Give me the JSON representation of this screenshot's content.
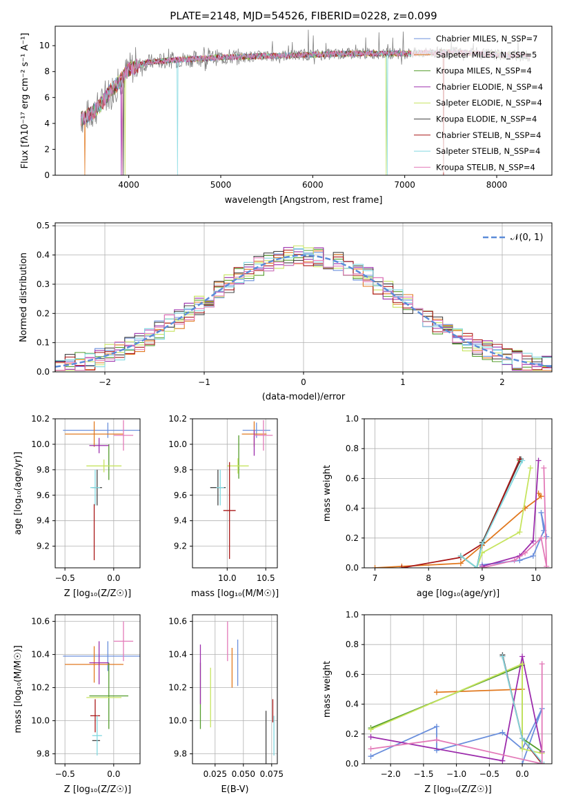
{
  "colors": {
    "c0": "#6a8fdc",
    "c1": "#e1781e",
    "c2": "#539c2b",
    "c3": "#9c2cac",
    "c4": "#c6e45e",
    "c5": "#444444",
    "c6": "#a81616",
    "c7": "#80d8e0",
    "c8": "#e37ab8"
  },
  "chart_data": [
    {
      "id": "spectrum",
      "type": "line",
      "title": "PLATE=2148, MJD=54526, FIBERID=0228, z=0.099",
      "xlabel": "wavelength [Angstrom, rest frame]",
      "ylabel": "Flux [fλ10⁻¹⁷ erg cm⁻² s⁻¹ A⁻¹]",
      "xlim": [
        3200,
        8600
      ],
      "ylim": [
        0,
        11.5
      ],
      "xticks": [
        "4000",
        "5000",
        "6000",
        "7000",
        "8000"
      ],
      "yticks": [
        "0",
        "2",
        "4",
        "6",
        "8",
        "10"
      ],
      "legend": [
        "Chabrier MILES, N_SSP=7",
        "Salpeter MILES, N_SSP=5",
        "Kroupa MILES, N_SSP=4",
        "Chabrier ELODIE, N_SSP=4",
        "Salpeter ELODIE, N_SSP=4",
        "Kroupa ELODIE, N_SSP=4",
        "Chabrier STELIB, N_SSP=4",
        "Salpeter STELIB, N_SSP=4",
        "Kroupa STELIB, N_SSP=4"
      ],
      "legend_placement": "right",
      "continuum": [
        [
          3500,
          4.4
        ],
        [
          3600,
          4.8
        ],
        [
          3700,
          5.5
        ],
        [
          3800,
          6.5
        ],
        [
          3900,
          7.2
        ],
        [
          4000,
          8.2
        ],
        [
          4200,
          8.7
        ],
        [
          4500,
          8.9
        ],
        [
          5000,
          9.1
        ],
        [
          5500,
          9.2
        ],
        [
          6000,
          9.3
        ],
        [
          6500,
          9.4
        ],
        [
          7000,
          9.4
        ],
        [
          7500,
          9.5
        ],
        [
          8000,
          9.3
        ],
        [
          8350,
          9.2
        ]
      ]
    },
    {
      "id": "residuals",
      "type": "histogram",
      "xlabel": "(data-model)/error",
      "ylabel": "Normed distribution",
      "xlim": [
        -2.5,
        2.5
      ],
      "ylim": [
        0,
        0.51
      ],
      "xticks": [
        "−2",
        "−1",
        "0",
        "1",
        "2"
      ],
      "yticks": [
        "0.0",
        "0.1",
        "0.2",
        "0.3",
        "0.4",
        "0.5"
      ],
      "bin_width": 0.1,
      "reference": "N(0,1)",
      "legend_label": "𝒩(0, 1)",
      "legend_placement": "top-right"
    },
    {
      "id": "age-vs-Z",
      "type": "errorbar",
      "xlabel": "Z [log₁₀(Z/Z☉)]",
      "ylabel": "age  [log₁₀(age/yr)]",
      "xlim": [
        -0.6,
        0.27
      ],
      "ylim": [
        9.03,
        10.2
      ],
      "xticks": [
        "−0.5",
        "0.0"
      ],
      "yticks": [
        "9.2",
        "9.4",
        "9.6",
        "9.8",
        "10.0",
        "10.2"
      ],
      "points": [
        {
          "c": "c0",
          "x": -0.06,
          "xerr": 0.46,
          "y": 10.11,
          "yerr": 0.06
        },
        {
          "c": "c1",
          "x": -0.2,
          "xerr": 0.3,
          "y": 10.08,
          "yerr": 0.1
        },
        {
          "c": "c2",
          "x": -0.05,
          "xerr": 0.0,
          "y": 9.86,
          "yerr": 0.14
        },
        {
          "c": "c3",
          "x": -0.15,
          "xerr": 0.1,
          "y": 9.99,
          "yerr": 0.06
        },
        {
          "c": "c4",
          "x": -0.1,
          "xerr": 0.18,
          "y": 9.83,
          "yerr": 0.05
        },
        {
          "c": "c5",
          "x": -0.17,
          "xerr": 0.05,
          "y": 9.66,
          "yerr": 0.14
        },
        {
          "c": "c6",
          "x": -0.2,
          "xerr": 0.0,
          "y": 9.31,
          "yerr": 0.22
        },
        {
          "c": "c7",
          "x": -0.19,
          "xerr": 0.05,
          "y": 9.66,
          "yerr": 0.14
        },
        {
          "c": "c8",
          "x": 0.1,
          "xerr": 0.1,
          "y": 10.07,
          "yerr": 0.12
        }
      ]
    },
    {
      "id": "age-vs-mass",
      "type": "errorbar",
      "xlabel": "mass [log₁₀(M/M☉)]",
      "xlim": [
        9.55,
        10.65
      ],
      "ylim": [
        9.03,
        10.2
      ],
      "xticks": [
        "10.0",
        "10.5"
      ],
      "yticks": [
        "9.2",
        "9.4",
        "9.6",
        "9.8",
        "10.0",
        "10.2"
      ],
      "points": [
        {
          "c": "c0",
          "x": 10.38,
          "xerr": 0.18,
          "y": 10.11,
          "yerr": 0.06
        },
        {
          "c": "c1",
          "x": 10.35,
          "xerr": 0.16,
          "y": 10.08,
          "yerr": 0.1
        },
        {
          "c": "c2",
          "x": 10.15,
          "xerr": 0.0,
          "y": 9.9,
          "yerr": 0.17
        },
        {
          "c": "c3",
          "x": 10.35,
          "xerr": 0.0,
          "y": 10.01,
          "yerr": 0.1
        },
        {
          "c": "c4",
          "x": 10.14,
          "xerr": 0.14,
          "y": 9.83,
          "yerr": 0.06
        },
        {
          "c": "c5",
          "x": 9.88,
          "xerr": 0.1,
          "y": 9.66,
          "yerr": 0.14
        },
        {
          "c": "c6",
          "x": 10.03,
          "xerr": 0.08,
          "y": 9.48,
          "yerr": 0.38
        },
        {
          "c": "c7",
          "x": 9.91,
          "xerr": 0.05,
          "y": 9.66,
          "yerr": 0.14
        },
        {
          "c": "c8",
          "x": 10.47,
          "xerr": 0.12,
          "y": 10.07,
          "yerr": 0.12
        }
      ]
    },
    {
      "id": "weight-vs-age",
      "type": "line",
      "xlabel": "age  [log₁₀(age/yr)]",
      "ylabel": "mass weight",
      "xlim": [
        6.8,
        10.3
      ],
      "ylim": [
        0,
        1.0
      ],
      "xticks": [
        "7",
        "8",
        "9",
        "10"
      ],
      "yticks": [
        "0.0",
        "0.2",
        "0.4",
        "0.6",
        "0.8",
        "1.0"
      ],
      "series": [
        {
          "c": "c0",
          "points": [
            [
              9.0,
              0.02
            ],
            [
              9.7,
              0.05
            ],
            [
              9.95,
              0.08
            ],
            [
              10.15,
              0.25
            ],
            [
              10.1,
              0.37
            ],
            [
              10.2,
              0.21
            ]
          ]
        },
        {
          "c": "c1",
          "points": [
            [
              7.0,
              0.0
            ],
            [
              7.5,
              0.01
            ],
            [
              8.6,
              0.03
            ],
            [
              9.0,
              0.15
            ],
            [
              9.8,
              0.4
            ],
            [
              10.1,
              0.48
            ],
            [
              10.05,
              0.5
            ]
          ]
        },
        {
          "c": "c2",
          "points": [
            [
              8.6,
              0.08
            ],
            [
              8.9,
              0.0
            ],
            [
              9.0,
              0.17
            ],
            [
              9.7,
              0.72
            ]
          ]
        },
        {
          "c": "c3",
          "points": [
            [
              9.0,
              0.01
            ],
            [
              9.7,
              0.08
            ],
            [
              9.95,
              0.18
            ],
            [
              10.05,
              0.72
            ]
          ]
        },
        {
          "c": "c4",
          "points": [
            [
              8.6,
              0.08
            ],
            [
              8.9,
              0.0
            ],
            [
              9.0,
              0.1
            ],
            [
              9.7,
              0.24
            ],
            [
              9.9,
              0.67
            ]
          ]
        },
        {
          "c": "c5",
          "points": [
            [
              8.6,
              0.08
            ],
            [
              8.9,
              0.0
            ],
            [
              9.0,
              0.17
            ],
            [
              9.72,
              0.73
            ]
          ]
        },
        {
          "c": "c6",
          "points": [
            [
              7.5,
              0.0
            ],
            [
              8.6,
              0.07
            ],
            [
              9.0,
              0.16
            ],
            [
              9.7,
              0.73
            ]
          ]
        },
        {
          "c": "c7",
          "points": [
            [
              8.6,
              0.08
            ],
            [
              8.9,
              0.0
            ],
            [
              9.0,
              0.16
            ],
            [
              9.75,
              0.72
            ]
          ]
        },
        {
          "c": "c8",
          "points": [
            [
              9.0,
              0.0
            ],
            [
              9.6,
              0.05
            ],
            [
              9.8,
              0.1
            ],
            [
              10.1,
              0.2
            ],
            [
              10.2,
              0.01
            ],
            [
              10.15,
              0.67
            ]
          ]
        }
      ]
    },
    {
      "id": "mass-vs-Z",
      "type": "errorbar",
      "xlabel": "Z [log₁₀(Z/Z☉)]",
      "ylabel": "mass [log₁₀(M/M☉)]",
      "xlim": [
        -0.6,
        0.27
      ],
      "ylim": [
        9.74,
        10.64
      ],
      "xticks": [
        "−0.5",
        "0.0"
      ],
      "yticks": [
        "9.8",
        "10.0",
        "10.2",
        "10.4",
        "10.6"
      ],
      "points": [
        {
          "c": "c0",
          "x": -0.06,
          "xerr": 0.46,
          "y": 10.39,
          "yerr": 0.09
        },
        {
          "c": "c1",
          "x": -0.2,
          "xerr": 0.3,
          "y": 10.34,
          "yerr": 0.11
        },
        {
          "c": "c2",
          "x": -0.05,
          "xerr": 0.2,
          "y": 10.15,
          "yerr": 0.2
        },
        {
          "c": "c3",
          "x": -0.15,
          "xerr": 0.1,
          "y": 10.35,
          "yerr": 0.13
        },
        {
          "c": "c4",
          "x": -0.1,
          "xerr": 0.18,
          "y": 10.14,
          "yerr": 0.0
        },
        {
          "c": "c5",
          "x": -0.18,
          "xerr": 0.04,
          "y": 9.88,
          "yerr": 0.0
        },
        {
          "c": "c6",
          "x": -0.19,
          "xerr": 0.05,
          "y": 10.03,
          "yerr": 0.1
        },
        {
          "c": "c7",
          "x": -0.17,
          "xerr": 0.05,
          "y": 9.91,
          "yerr": 0.12
        },
        {
          "c": "c8",
          "x": 0.1,
          "xerr": 0.1,
          "y": 10.48,
          "yerr": 0.12
        }
      ]
    },
    {
      "id": "mass-vs-ebv",
      "type": "errorbar",
      "xlabel": "E(B-V)",
      "xlim": [
        0.005,
        0.08
      ],
      "ylim": [
        9.74,
        10.64
      ],
      "xticks": [
        "0.025",
        "0.050",
        "0.075"
      ],
      "yticks": [
        "9.8",
        "10.0",
        "10.2",
        "10.4",
        "10.6"
      ],
      "points": [
        {
          "c": "c0",
          "x": 0.045,
          "xerr": 0.0,
          "y": 10.35,
          "yerr": 0.14
        },
        {
          "c": "c1",
          "x": 0.04,
          "xerr": 0.0,
          "y": 10.32,
          "yerr": 0.12
        },
        {
          "c": "c2",
          "x": 0.012,
          "xerr": 0.0,
          "y": 10.15,
          "yerr": 0.2
        },
        {
          "c": "c3",
          "x": 0.012,
          "xerr": 0.0,
          "y": 10.28,
          "yerr": 0.18
        },
        {
          "c": "c4",
          "x": 0.021,
          "xerr": 0.0,
          "y": 10.14,
          "yerr": 0.18
        },
        {
          "c": "c5",
          "x": 0.07,
          "xerr": 0.0,
          "y": 9.88,
          "yerr": 0.18
        },
        {
          "c": "c6",
          "x": 0.076,
          "xerr": 0.0,
          "y": 10.06,
          "yerr": 0.07
        },
        {
          "c": "c7",
          "x": 0.077,
          "xerr": 0.0,
          "y": 9.91,
          "yerr": 0.12
        },
        {
          "c": "c8",
          "x": 0.036,
          "xerr": 0.0,
          "y": 10.48,
          "yerr": 0.12
        }
      ]
    },
    {
      "id": "weight-vs-Z",
      "type": "line",
      "xlabel": "Z [log₁₀(Z/Z☉)]",
      "ylabel": "mass weight",
      "xlim": [
        -2.4,
        0.45
      ],
      "ylim": [
        0,
        1.0
      ],
      "xticks": [
        "−2.0",
        "−1.5",
        "−1.0",
        "−0.5",
        "0.0"
      ],
      "yticks": [
        "0.0",
        "0.2",
        "0.4",
        "0.6",
        "0.8",
        "1.0"
      ],
      "series": [
        {
          "c": "c0",
          "points": [
            [
              -2.3,
              0.05
            ],
            [
              -1.3,
              0.25
            ],
            [
              -1.3,
              0.09
            ],
            [
              -0.3,
              0.21
            ],
            [
              0.0,
              0.1
            ],
            [
              0.3,
              0.37
            ],
            [
              0.0,
              0.0
            ]
          ]
        },
        {
          "c": "c1",
          "points": [
            [
              -1.3,
              0.48
            ],
            [
              0.0,
              0.5
            ]
          ]
        },
        {
          "c": "c2",
          "points": [
            [
              -2.3,
              0.24
            ],
            [
              0.0,
              0.66
            ],
            [
              0.0,
              0.17
            ],
            [
              0.3,
              0.08
            ]
          ]
        },
        {
          "c": "c3",
          "points": [
            [
              -2.3,
              0.18
            ],
            [
              -0.3,
              0.02
            ],
            [
              0.0,
              0.72
            ],
            [
              0.3,
              0.08
            ]
          ]
        },
        {
          "c": "c4",
          "points": [
            [
              -2.3,
              0.23
            ],
            [
              0.0,
              0.67
            ],
            [
              0.0,
              0.1
            ],
            [
              0.3,
              0.07
            ]
          ]
        },
        {
          "c": "c5",
          "points": [
            [
              -0.3,
              0.73
            ],
            [
              0.0,
              0.17
            ],
            [
              0.3,
              0.0
            ]
          ]
        },
        {
          "c": "c6",
          "points": [
            [
              -0.3,
              0.72
            ],
            [
              0.0,
              0.17
            ],
            [
              0.3,
              0.0
            ]
          ]
        },
        {
          "c": "c7",
          "points": [
            [
              -0.3,
              0.72
            ],
            [
              0.0,
              0.17
            ],
            [
              0.3,
              0.01
            ]
          ]
        },
        {
          "c": "c8",
          "points": [
            [
              -2.3,
              0.1
            ],
            [
              -1.3,
              0.16
            ],
            [
              0.3,
              0.0
            ],
            [
              0.3,
              0.67
            ]
          ]
        }
      ]
    }
  ]
}
